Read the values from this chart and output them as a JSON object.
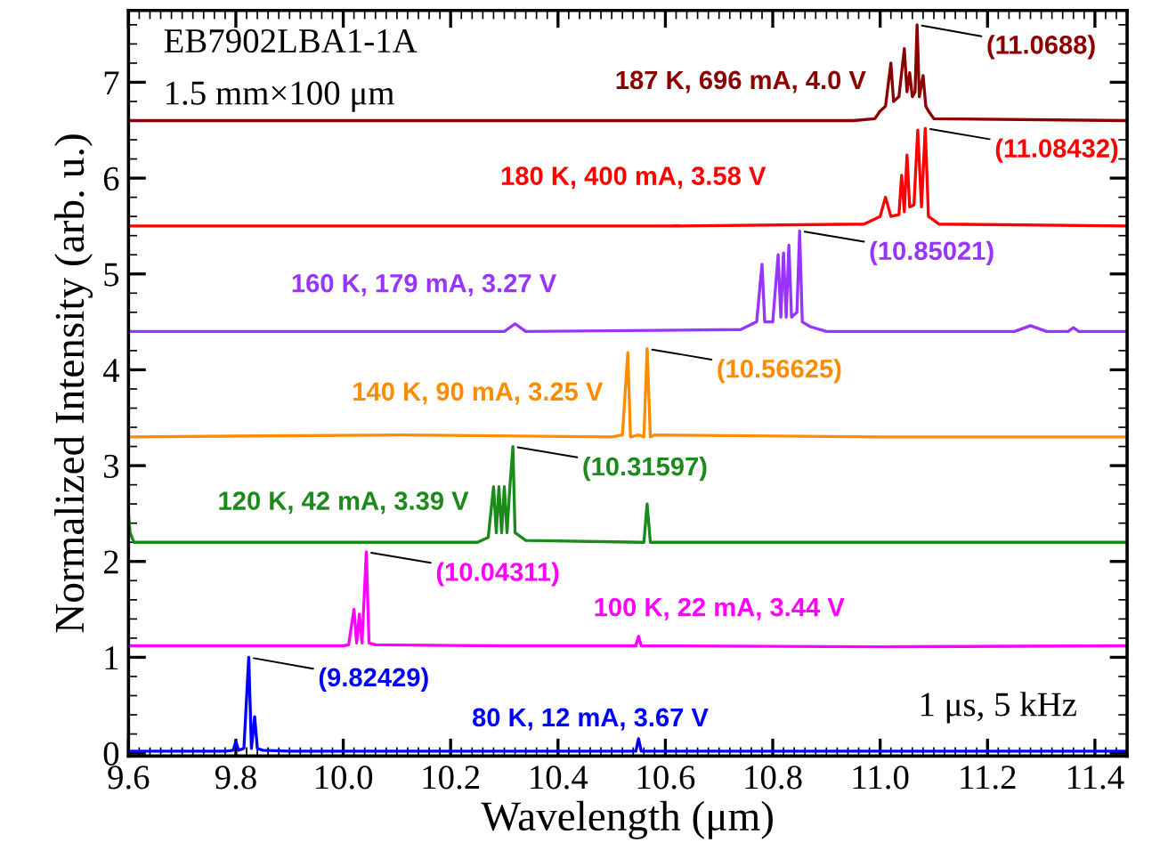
{
  "chart_data": {
    "type": "line",
    "xlabel": "Wavelength (μm)",
    "ylabel": "Normalized Intensity (arb. u.)",
    "xlim": [
      9.6,
      11.46
    ],
    "ylim": [
      -0.03,
      7.75
    ],
    "xticks": [
      9.6,
      9.8,
      {
        "value": 10.0,
        "label": "10.0"
      },
      10.2,
      10.4,
      10.6,
      10.8,
      {
        "value": 11.0,
        "label": "11.0"
      },
      11.2,
      11.4
    ],
    "yticks": [
      0,
      1,
      2,
      3,
      4,
      5,
      6,
      7
    ],
    "marker": "none",
    "line_style": "solid",
    "series": [
      {
        "name": "80 K, 12 mA, 3.67 V",
        "color": "#0000ff",
        "x": [
          9.6,
          9.78,
          9.795,
          9.8,
          9.805,
          9.815,
          9.824,
          9.829,
          9.835,
          9.84,
          9.85,
          9.9,
          10.2,
          10.545,
          10.55,
          10.555,
          11.0,
          11.46
        ],
        "values": [
          0.02,
          0.02,
          0.03,
          0.12,
          0.03,
          0.05,
          1.0,
          0.05,
          0.38,
          0.05,
          0.03,
          0.02,
          0.02,
          0.02,
          0.15,
          0.02,
          0.02,
          0.02
        ]
      },
      {
        "name": "100 K, 22 mA, 3.44 V",
        "color": "#ff00ff",
        "x": [
          9.6,
          10.0,
          10.01,
          10.02,
          10.025,
          10.03,
          10.035,
          10.043,
          10.048,
          10.06,
          10.3,
          10.545,
          10.55,
          10.555,
          11.0,
          11.46
        ],
        "values": [
          1.12,
          1.12,
          1.13,
          1.5,
          1.15,
          1.45,
          1.15,
          2.1,
          1.15,
          1.13,
          1.12,
          1.12,
          1.22,
          1.12,
          1.11,
          1.12
        ]
      },
      {
        "name": "120 K, 42 mA, 3.39 V",
        "color": "#1a8a1a",
        "x": [
          9.6,
          9.603,
          9.61,
          10.25,
          10.27,
          10.28,
          10.285,
          10.29,
          10.295,
          10.3,
          10.305,
          10.31,
          10.316,
          10.32,
          10.34,
          10.56,
          10.566,
          10.572,
          11.0,
          11.46
        ],
        "values": [
          2.5,
          2.3,
          2.2,
          2.2,
          2.25,
          2.78,
          2.3,
          2.78,
          2.3,
          2.78,
          2.3,
          2.75,
          3.2,
          2.3,
          2.22,
          2.2,
          2.6,
          2.2,
          2.2,
          2.2
        ]
      },
      {
        "name": "140 K, 90 mA, 3.25 V",
        "color": "#ff8c00",
        "x": [
          9.6,
          10.11,
          10.5,
          10.52,
          10.53,
          10.535,
          10.55,
          10.56,
          10.566,
          10.572,
          10.58,
          11.0,
          11.46
        ],
        "values": [
          3.3,
          3.32,
          3.3,
          3.32,
          4.18,
          3.3,
          3.32,
          3.3,
          4.22,
          3.3,
          3.32,
          3.3,
          3.3
        ]
      },
      {
        "name": "160 K, 179 mA, 3.27 V",
        "color": "#9933ff",
        "x": [
          9.6,
          10.3,
          10.32,
          10.34,
          10.74,
          10.77,
          10.78,
          10.785,
          10.8,
          10.81,
          10.815,
          10.82,
          10.825,
          10.83,
          10.835,
          10.845,
          10.85,
          10.855,
          10.87,
          10.9,
          11.25,
          11.28,
          11.31,
          11.35,
          11.36,
          11.37,
          11.46
        ],
        "values": [
          4.4,
          4.4,
          4.48,
          4.4,
          4.42,
          4.5,
          5.1,
          4.5,
          4.5,
          5.2,
          4.55,
          5.22,
          4.55,
          5.3,
          4.55,
          4.6,
          5.45,
          4.5,
          4.45,
          4.4,
          4.4,
          4.46,
          4.4,
          4.4,
          4.44,
          4.4,
          4.4
        ]
      },
      {
        "name": "180 K, 400 mA, 3.58 V",
        "color": "#ff0000",
        "x": [
          9.6,
          10.6,
          10.97,
          11.0,
          11.01,
          11.02,
          11.035,
          11.04,
          11.045,
          11.05,
          11.055,
          11.063,
          11.07,
          11.077,
          11.084,
          11.09,
          11.11,
          11.46
        ],
        "values": [
          5.5,
          5.5,
          5.52,
          5.6,
          5.8,
          5.6,
          5.62,
          6.03,
          5.65,
          6.24,
          5.7,
          5.72,
          6.5,
          5.7,
          6.52,
          5.6,
          5.52,
          5.5
        ]
      },
      {
        "name": "187 K, 696 mA, 4.0 V",
        "color": "#8b0000",
        "x": [
          9.6,
          10.95,
          10.99,
          11.0,
          11.01,
          11.02,
          11.025,
          11.035,
          11.045,
          11.05,
          11.055,
          11.06,
          11.065,
          11.0688,
          11.073,
          11.08,
          11.085,
          11.09,
          11.1,
          11.46
        ],
        "values": [
          6.6,
          6.6,
          6.62,
          6.7,
          6.75,
          7.2,
          6.8,
          6.85,
          7.35,
          6.9,
          7.1,
          6.85,
          6.9,
          7.6,
          6.85,
          7.07,
          6.75,
          6.7,
          6.62,
          6.6
        ]
      }
    ],
    "annotations": [
      {
        "text": "(9.82429)",
        "x": 9.82429,
        "y": 1.0
      },
      {
        "text": "(10.04311)",
        "x": 10.04311,
        "y": 2.1
      },
      {
        "text": "(10.31597)",
        "x": 10.31597,
        "y": 3.2
      },
      {
        "text": "(10.56625)",
        "x": 10.56625,
        "y": 4.22
      },
      {
        "text": "(10.85021)",
        "x": 10.85021,
        "y": 5.45
      },
      {
        "text": "(11.08432)",
        "x": 11.08432,
        "y": 6.52
      },
      {
        "text": "(11.0688)",
        "x": 11.0688,
        "y": 7.6
      },
      "EB7902LBA1-1A",
      "1.5 mm×100 μm",
      "1 μs, 5 kHz"
    ]
  }
}
